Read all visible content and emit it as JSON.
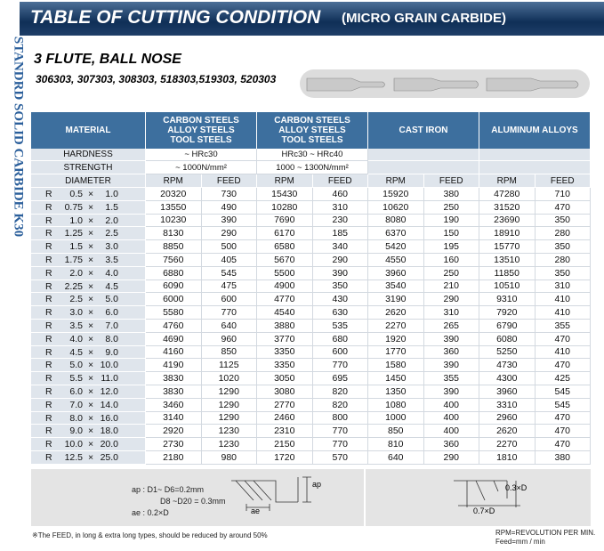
{
  "side_text": "STANDRD SOLID CARBIDE K30",
  "header": {
    "title": "TABLE OF CUTTING CONDITION",
    "subtitle": "(MICRO GRAIN CARBIDE)"
  },
  "product": {
    "name": "3 FLUTE, BALL NOSE",
    "codes": "306303, 307303, 308303, 518303,519303, 520303"
  },
  "table": {
    "material": "MATERIAL",
    "groups": [
      [
        "CARBON STEELS",
        "ALLOY STEELS",
        "TOOL STEELS"
      ],
      [
        "CARBON STEELS",
        "ALLOY STEELS",
        "TOOL STEELS"
      ],
      [
        "CAST IRON"
      ],
      [
        "ALUMINUM ALLOYS"
      ]
    ],
    "hardness": {
      "label": "HARDNESS",
      "values": [
        "~ HRc30",
        "HRc30 ~ HRc40"
      ]
    },
    "strength": {
      "label": "STRENGTH",
      "values": [
        "~ 1000N/mm²",
        "1000 ~ 1300N/mm²"
      ]
    },
    "diameter": "DIAMETER",
    "subheaders": [
      "RPM",
      "FEED",
      "RPM",
      "FEED",
      "RPM",
      "FEED",
      "RPM",
      "FEED"
    ],
    "rows": [
      [
        "R",
        "0.5",
        "×",
        "1.0",
        20320,
        730,
        15430,
        460,
        15920,
        380,
        47280,
        710
      ],
      [
        "R",
        "0.75",
        "×",
        "1.5",
        13550,
        490,
        10280,
        310,
        10620,
        250,
        31520,
        470
      ],
      [
        "R",
        "1.0",
        "×",
        "2.0",
        10230,
        390,
        7690,
        230,
        8080,
        190,
        23690,
        350
      ],
      [
        "R",
        "1.25",
        "×",
        "2.5",
        8130,
        290,
        6170,
        185,
        6370,
        150,
        18910,
        280
      ],
      [
        "R",
        "1.5",
        "×",
        "3.0",
        8850,
        500,
        6580,
        340,
        5420,
        195,
        15770,
        350
      ],
      [
        "R",
        "1.75",
        "×",
        "3.5",
        7560,
        405,
        5670,
        290,
        4550,
        160,
        13510,
        280
      ],
      [
        "R",
        "2.0",
        "×",
        "4.0",
        6880,
        545,
        5500,
        390,
        3960,
        250,
        11850,
        350
      ],
      [
        "R",
        "2.25",
        "×",
        "4.5",
        6090,
        475,
        4900,
        350,
        3540,
        210,
        10510,
        310
      ],
      [
        "R",
        "2.5",
        "×",
        "5.0",
        6000,
        600,
        4770,
        430,
        3190,
        290,
        9310,
        410
      ],
      [
        "R",
        "3.0",
        "×",
        "6.0",
        5580,
        770,
        4540,
        630,
        2620,
        310,
        7920,
        410
      ],
      [
        "R",
        "3.5",
        "×",
        "7.0",
        4760,
        640,
        3880,
        535,
        2270,
        265,
        6790,
        355
      ],
      [
        "R",
        "4.0",
        "×",
        "8.0",
        4690,
        960,
        3770,
        680,
        1920,
        390,
        6080,
        470
      ],
      [
        "R",
        "4.5",
        "×",
        "9.0",
        4160,
        850,
        3350,
        600,
        1770,
        360,
        5250,
        410
      ],
      [
        "R",
        "5.0",
        "×",
        "10.0",
        4190,
        1125,
        3350,
        770,
        1580,
        390,
        4730,
        470
      ],
      [
        "R",
        "5.5",
        "×",
        "11.0",
        3830,
        1020,
        3050,
        695,
        1450,
        355,
        4300,
        425
      ],
      [
        "R",
        "6.0",
        "×",
        "12.0",
        3830,
        1290,
        3080,
        820,
        1350,
        390,
        3960,
        545
      ],
      [
        "R",
        "7.0",
        "×",
        "14.0",
        3460,
        1290,
        2770,
        820,
        1080,
        400,
        3310,
        545
      ],
      [
        "R",
        "8.0",
        "×",
        "16.0",
        3140,
        1290,
        2460,
        800,
        1000,
        400,
        2960,
        470
      ],
      [
        "R",
        "9.0",
        "×",
        "18.0",
        2920,
        1230,
        2310,
        770,
        850,
        400,
        2620,
        470
      ],
      [
        "R",
        "10.0",
        "×",
        "20.0",
        2730,
        1230,
        2150,
        770,
        810,
        360,
        2270,
        470
      ],
      [
        "R",
        "12.5",
        "×",
        "25.0",
        2180,
        980,
        1720,
        570,
        640,
        290,
        1810,
        380
      ]
    ]
  },
  "diagram": {
    "ap": "ap : D1~ D6=0.2mm",
    "ap2": "D8 ~D20 = 0.3mm",
    "ae": "ae : 0.2×D",
    "ap_label": "ap",
    "ae_label": "ae",
    "depth": "0.3×D",
    "width": "0.7×D"
  },
  "notes": {
    "footnote": "※The FEED, in long & extra long types, should be reduced by around 50%",
    "rpm": "RPM=REVOLUTION PER MIN.",
    "feed": "Feed=mm / min"
  }
}
